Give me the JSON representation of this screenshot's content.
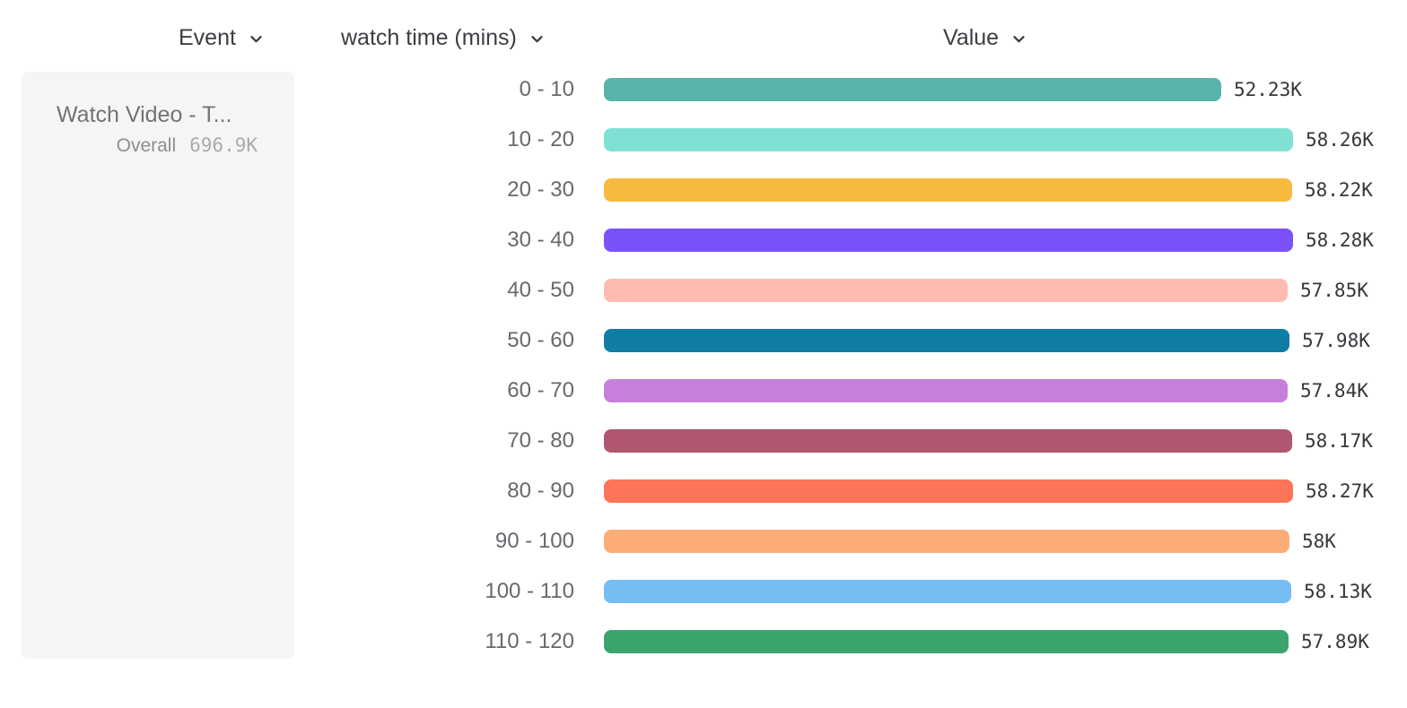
{
  "header": {
    "event_label": "Event",
    "breakdown_label": "watch time (mins)",
    "value_label": "Value"
  },
  "event_card": {
    "title": "Watch Video - T...",
    "overall_label": "Overall",
    "overall_value": "696.9K"
  },
  "chart_data": {
    "type": "bar",
    "orientation": "horizontal",
    "title": "",
    "xlabel": "Value",
    "ylabel": "watch time (mins)",
    "categories": [
      "0 - 10",
      "10 - 20",
      "20 - 30",
      "30 - 40",
      "40 - 50",
      "50 - 60",
      "60 - 70",
      "70 - 80",
      "80 - 90",
      "90 - 100",
      "100 - 110",
      "110 - 120"
    ],
    "values_thousands": [
      52.23,
      58.26,
      58.22,
      58.28,
      57.85,
      57.98,
      57.84,
      58.17,
      58.27,
      58,
      58.13,
      57.89
    ],
    "value_labels": [
      "52.23K",
      "58.26K",
      "58.22K",
      "58.28K",
      "57.85K",
      "57.98K",
      "57.84K",
      "58.17K",
      "58.27K",
      "58K",
      "58.13K",
      "57.89K"
    ],
    "bar_colors": [
      "#58b4ab",
      "#80e0d4",
      "#f6bb3e",
      "#7a52f8",
      "#fcbcb1",
      "#117da5",
      "#c77fdc",
      "#b0566e",
      "#fd7458",
      "#fcad77",
      "#75bdf2",
      "#3ba46d"
    ],
    "axis_max_thousands": 58.28,
    "grid": false,
    "legend": false,
    "overall_total": "696.9K"
  }
}
